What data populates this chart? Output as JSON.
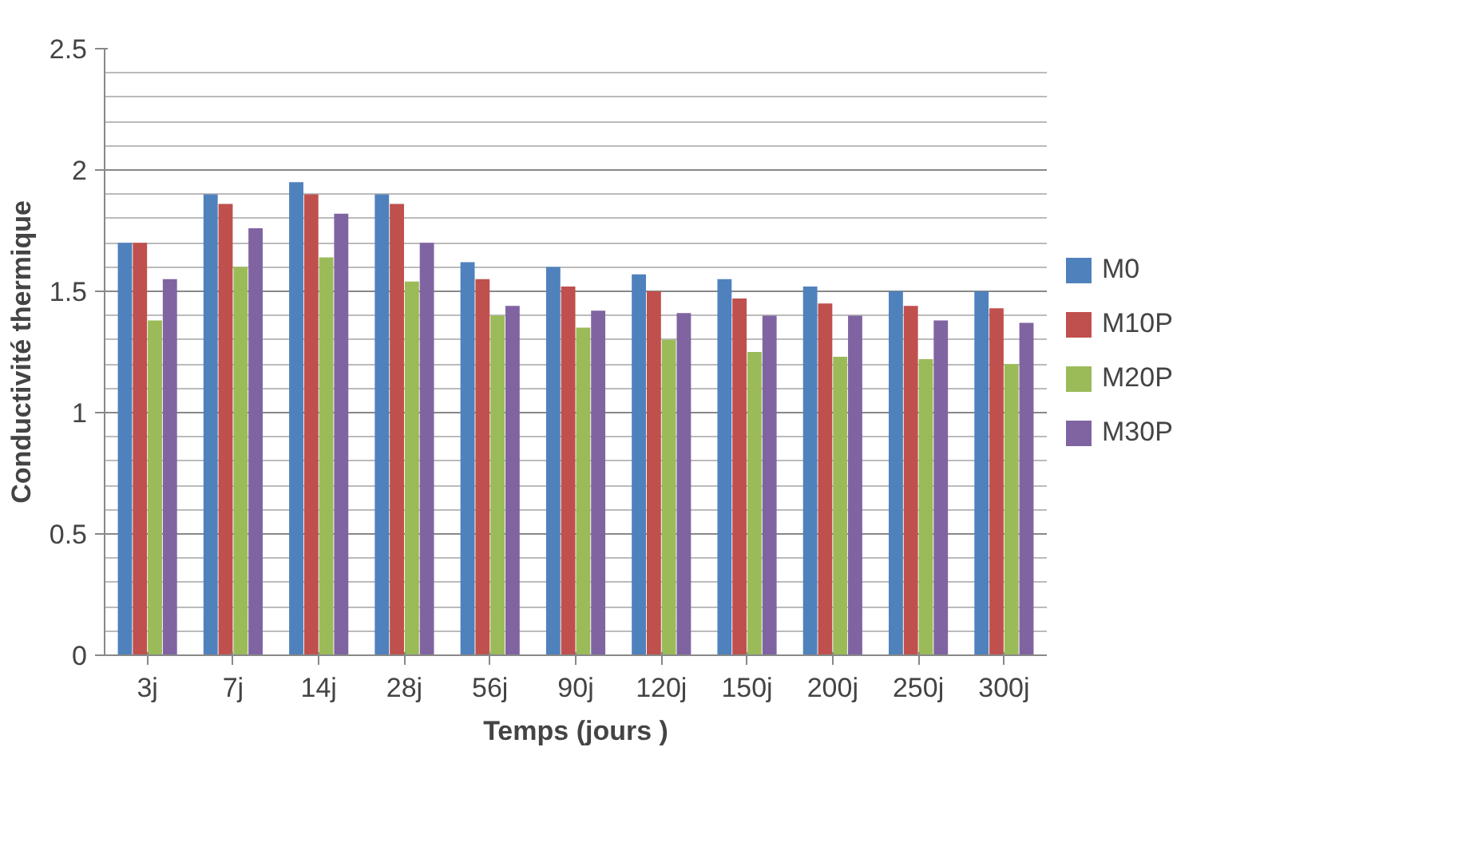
{
  "chart_data": {
    "type": "bar",
    "xlabel": "Temps (jours )",
    "ylabel": "Conductivité thermique",
    "categories": [
      "3j",
      "7j",
      "14j",
      "28j",
      "56j",
      "90j",
      "120j",
      "150j",
      "200j",
      "250j",
      "300j"
    ],
    "series": [
      {
        "name": "M0",
        "color": "#4f81bd",
        "values": [
          1.7,
          1.9,
          1.95,
          1.9,
          1.62,
          1.6,
          1.57,
          1.55,
          1.52,
          1.5,
          1.5
        ]
      },
      {
        "name": "M10P",
        "color": "#c0504d",
        "values": [
          1.7,
          1.86,
          1.9,
          1.86,
          1.55,
          1.52,
          1.5,
          1.47,
          1.45,
          1.44,
          1.43
        ]
      },
      {
        "name": "M20P",
        "color": "#9bbb59",
        "values": [
          1.38,
          1.6,
          1.64,
          1.54,
          1.4,
          1.35,
          1.3,
          1.25,
          1.23,
          1.22,
          1.2
        ]
      },
      {
        "name": "M30P",
        "color": "#8064a2",
        "values": [
          1.55,
          1.76,
          1.82,
          1.7,
          1.44,
          1.42,
          1.41,
          1.4,
          1.4,
          1.38,
          1.37
        ]
      }
    ],
    "ylim": [
      0,
      2.5
    ],
    "yticks": [
      0,
      0.5,
      1,
      1.5,
      2,
      2.5
    ],
    "grid": "y",
    "legend": "right"
  }
}
